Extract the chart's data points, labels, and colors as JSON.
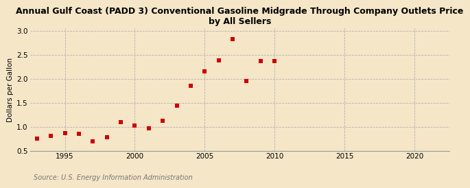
{
  "title": "Annual Gulf Coast (PADD 3) Conventional Gasoline Midgrade Through Company Outlets Price\nby All Sellers",
  "ylabel": "Dollars per Gallon",
  "source": "Source: U.S. Energy Information Administration",
  "background_color": "#f5e6c8",
  "plot_background_color": "#f5e6c8",
  "marker_color": "#cc0000",
  "marker": "s",
  "marker_size": 4,
  "xlim": [
    1992.5,
    2022.5
  ],
  "ylim": [
    0.5,
    3.05
  ],
  "xticks": [
    1995,
    2000,
    2005,
    2010,
    2015,
    2020
  ],
  "yticks": [
    0.5,
    1.0,
    1.5,
    2.0,
    2.5,
    3.0
  ],
  "data": {
    "years": [
      1993,
      1994,
      1995,
      1996,
      1997,
      1998,
      1999,
      2000,
      2001,
      2002,
      2003,
      2004,
      2005,
      2006,
      2007,
      2008,
      2009,
      2010
    ],
    "values": [
      0.76,
      0.81,
      0.87,
      0.86,
      0.69,
      0.78,
      1.1,
      1.02,
      0.97,
      1.13,
      1.44,
      1.85,
      2.15,
      2.38,
      2.83,
      1.95,
      2.37,
      2.37
    ]
  }
}
